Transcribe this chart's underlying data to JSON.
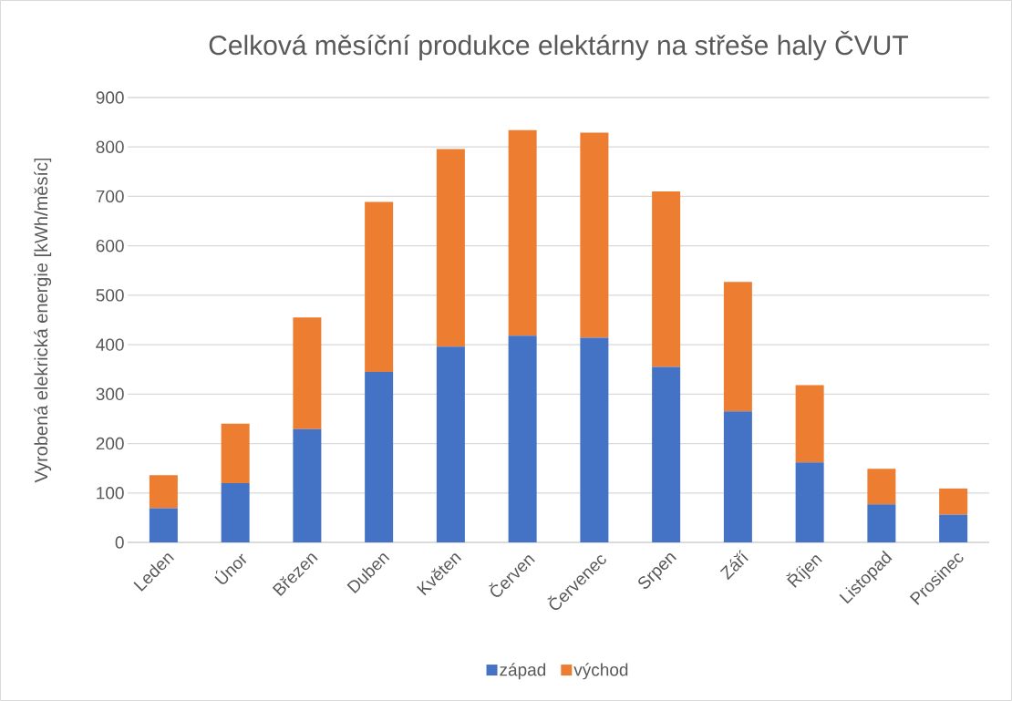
{
  "chart_data": {
    "type": "bar",
    "stacked": true,
    "title": "Celková měsíční produkce elektárny na střeše haly ČVUT",
    "ylabel": "Vyrobená elekrická energie [kWh/měsíc]",
    "categories": [
      "Leden",
      "Únor",
      "Březen",
      "Duben",
      "Květen",
      "Červen",
      "Červenec",
      "Srpen",
      "Září",
      "Říjen",
      "Listopad",
      "Prosinec"
    ],
    "series": [
      {
        "name": "západ",
        "color": "#4472c4",
        "values": [
          69,
          120,
          229,
          345,
          396,
          418,
          414,
          355,
          265,
          162,
          77,
          56
        ]
      },
      {
        "name": "východ",
        "color": "#ed7d31",
        "values": [
          67,
          120,
          226,
          344,
          400,
          416,
          415,
          355,
          262,
          156,
          72,
          53
        ]
      }
    ],
    "ylim": [
      0,
      900
    ],
    "yticks": [
      0,
      100,
      200,
      300,
      400,
      500,
      600,
      700,
      800,
      900
    ],
    "grid": "y",
    "legend": "bottom"
  }
}
